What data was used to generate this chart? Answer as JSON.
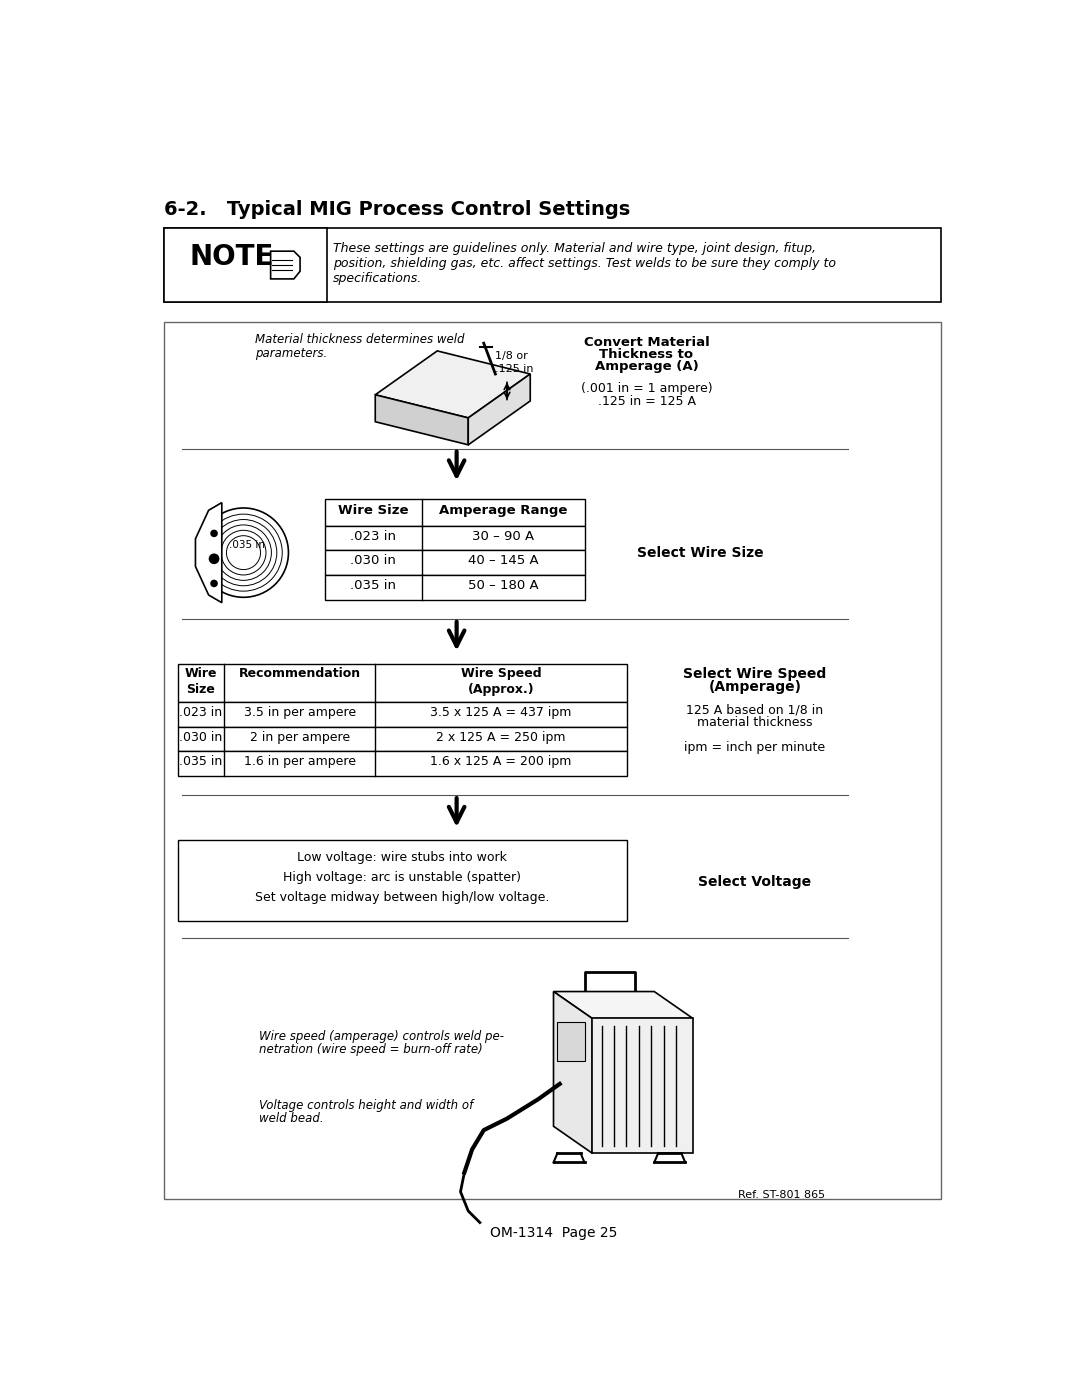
{
  "page_title": "6-2.   Typical MIG Process Control Settings",
  "note_text_line1": "These settings are guidelines only. Material and wire type, joint design, fitup,",
  "note_text_line2": "position, shielding gas, etc. affect settings. Test welds to be sure they comply to",
  "note_text_line3": "specifications.",
  "section1_italic1": "Material thickness determines weld",
  "section1_italic2": "parameters.",
  "section1_dim": "1/8 or\n.125 in",
  "right1_title_line1": "Convert Material",
  "right1_title_line2": "Thickness to",
  "right1_title_line3": "Amperage (A)",
  "right1_sub1": "(.001 in = 1 ampere)",
  "right1_sub2": ".125 in = 125 A",
  "wire_label": ".035 in",
  "table1_col1": "Wire Size",
  "table1_col2": "Amperage Range",
  "table1_r1c1": ".023 in",
  "table1_r1c2": "30 – 90 A",
  "table1_r2c1": ".030 in",
  "table1_r2c2": "40 – 145 A",
  "table1_r3c1": ".035 in",
  "table1_r3c2": "50 – 180 A",
  "right2_label": "Select Wire Size",
  "table2_h1": "Wire\nSize",
  "table2_h2": "Recommendation",
  "table2_h3": "Wire Speed\n(Approx.)",
  "table2_r1c1": ".023 in",
  "table2_r1c2": "3.5 in per ampere",
  "table2_r1c3": "3.5 x 125 A = 437 ipm",
  "table2_r2c1": ".030 in",
  "table2_r2c2": "2 in per ampere",
  "table2_r2c3": "2 x 125 A = 250 ipm",
  "table2_r3c1": ".035 in",
  "table2_r3c2": "1.6 in per ampere",
  "table2_r3c3": "1.6 x 125 A = 200 ipm",
  "right3_title1": "Select Wire Speed",
  "right3_title2": "(Amperage)",
  "right3_sub1": "125 A based on 1/8 in",
  "right3_sub2": "material thickness",
  "right3_sub3": "ipm = inch per minute",
  "volt_line1": "Low voltage: wire stubs into work",
  "volt_line2": "High voltage: arc is unstable (spatter)",
  "volt_line3": "Set voltage midway between high/low voltage.",
  "right4_label": "Select Voltage",
  "bottom_text1a": "Wire speed (amperage) controls weld pe-",
  "bottom_text1b": "netration (wire speed = burn-off rate)",
  "bottom_text2a": "Voltage controls height and width of",
  "bottom_text2b": "weld bead.",
  "footer_ref": "Ref. ST-801 865",
  "footer_page": "OM-1314  Page 25"
}
